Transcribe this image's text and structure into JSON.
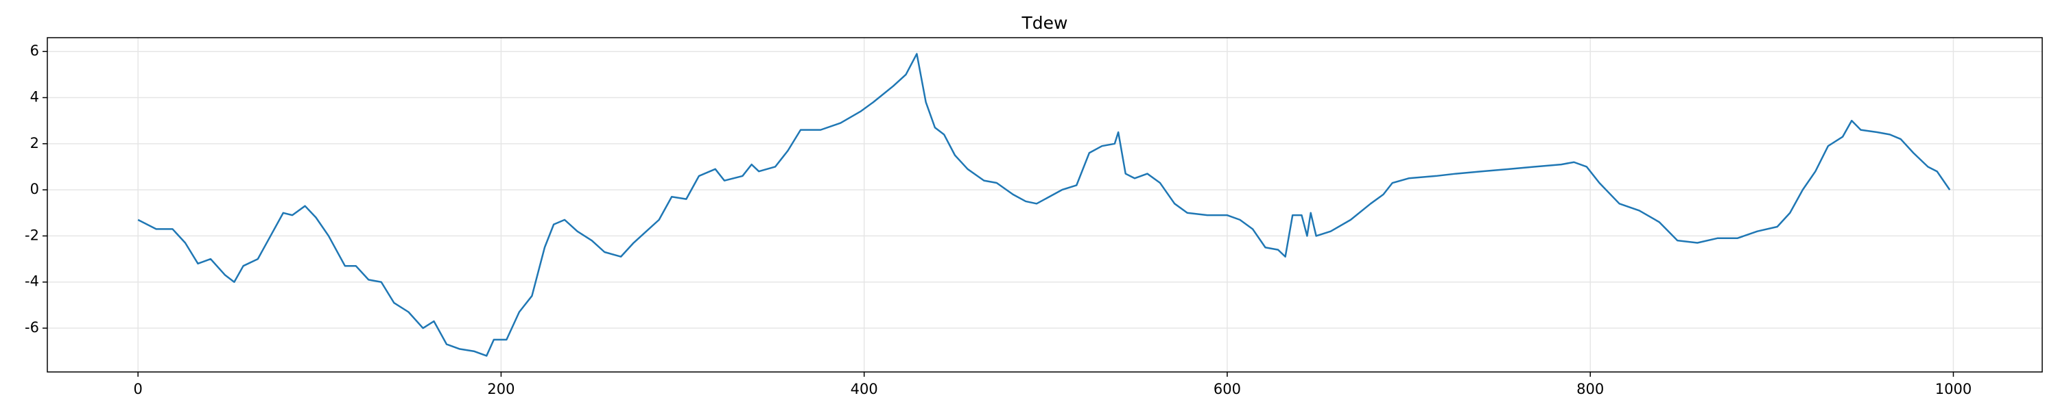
{
  "chart_data": {
    "type": "line",
    "title": "Tdew",
    "x": [
      0,
      10,
      19,
      26,
      33,
      40,
      48,
      53,
      58,
      66,
      73,
      80,
      85,
      92,
      98,
      105,
      114,
      120,
      127,
      134,
      141,
      149,
      157,
      163,
      170,
      177,
      185,
      192,
      196,
      203,
      210,
      217,
      224,
      229,
      235,
      242,
      250,
      257,
      266,
      273,
      280,
      287,
      294,
      302,
      309,
      318,
      323,
      333,
      338,
      342,
      351,
      358,
      365,
      376,
      387,
      398,
      405,
      416,
      423,
      429,
      434,
      439,
      444,
      450,
      457,
      466,
      473,
      482,
      489,
      495,
      502,
      509,
      517,
      524,
      531,
      538,
      540,
      544,
      549,
      556,
      563,
      571,
      578,
      589,
      600,
      607,
      614,
      621,
      628,
      632,
      636,
      641,
      644,
      646,
      649,
      657,
      668,
      679,
      686,
      691,
      700,
      715,
      726,
      740,
      755,
      769,
      784,
      791,
      798,
      805,
      816,
      827,
      838,
      848,
      859,
      870,
      881,
      892,
      903,
      910,
      917,
      924,
      931,
      939,
      944,
      949,
      958,
      965,
      971,
      978,
      986,
      991,
      998
    ],
    "series": [
      {
        "name": "Tdew",
        "color": "#1f77b4",
        "values": [
          -1.3,
          -1.7,
          -1.7,
          -2.3,
          -3.2,
          -3.0,
          -3.7,
          -4.0,
          -3.3,
          -3.0,
          -2.0,
          -1.0,
          -1.1,
          -0.7,
          -1.2,
          -2.0,
          -3.3,
          -3.3,
          -3.9,
          -4.0,
          -4.9,
          -5.3,
          -6.0,
          -5.7,
          -6.7,
          -6.9,
          -7.0,
          -7.2,
          -6.5,
          -6.5,
          -5.3,
          -4.6,
          -2.5,
          -1.5,
          -1.3,
          -1.8,
          -2.2,
          -2.7,
          -2.9,
          -2.3,
          -1.8,
          -1.3,
          -0.3,
          -0.4,
          0.6,
          0.9,
          0.4,
          0.6,
          1.1,
          0.8,
          1.0,
          1.7,
          2.6,
          2.6,
          2.9,
          3.4,
          3.8,
          4.5,
          5.0,
          5.9,
          3.8,
          2.7,
          2.4,
          1.5,
          0.9,
          0.4,
          0.3,
          -0.2,
          -0.5,
          -0.6,
          -0.3,
          0.0,
          0.2,
          1.6,
          1.9,
          2.0,
          2.5,
          0.7,
          0.5,
          0.7,
          0.3,
          -0.6,
          -1.0,
          -1.1,
          -1.1,
          -1.3,
          -1.7,
          -2.5,
          -2.6,
          -2.9,
          -1.1,
          -1.1,
          -2.0,
          -1.0,
          -2.0,
          -1.8,
          -1.3,
          -0.6,
          -0.2,
          0.3,
          0.5,
          0.6,
          0.7,
          0.8,
          0.9,
          1.0,
          1.1,
          1.2,
          1.0,
          0.3,
          -0.6,
          -0.9,
          -1.4,
          -2.2,
          -2.3,
          -2.1,
          -2.1,
          -1.8,
          -1.6,
          -1.0,
          0.0,
          0.8,
          1.9,
          2.3,
          3.0,
          2.6,
          2.5,
          2.4,
          2.2,
          1.6,
          1.0,
          0.8,
          0.0
        ]
      }
    ],
    "xlim": [
      -49.95,
      1048.95
    ],
    "xticks": [
      0,
      200,
      400,
      600,
      800,
      1000
    ],
    "ylim": [
      -7.9,
      6.6
    ],
    "yticks": [
      -6,
      -4,
      -2,
      0,
      2,
      4,
      6
    ],
    "grid": true
  }
}
